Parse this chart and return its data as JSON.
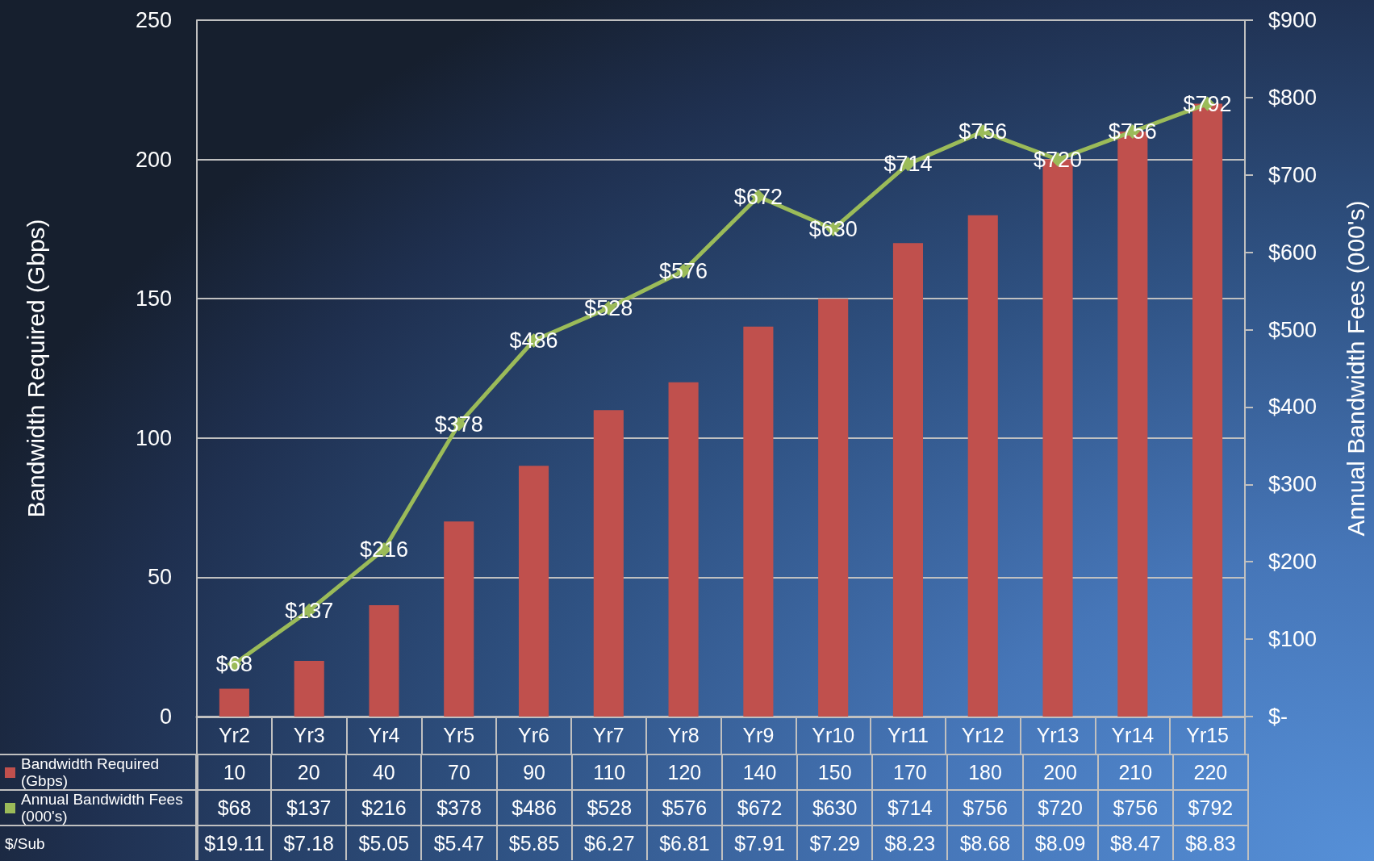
{
  "chart_data": {
    "type": "bar",
    "ylabel": "Bandwidth Required (Gbps)",
    "y2label": "Annual Bandwidth Fees (000's)",
    "categories": [
      "Yr2",
      "Yr3",
      "Yr4",
      "Yr5",
      "Yr6",
      "Yr7",
      "Yr8",
      "Yr9",
      "Yr10",
      "Yr11",
      "Yr12",
      "Yr13",
      "Yr14",
      "Yr15"
    ],
    "series": [
      {
        "name": "Bandwidth Required (Gbps)",
        "color": "#c0504d",
        "values": [
          10,
          20,
          40,
          70,
          90,
          110,
          120,
          140,
          150,
          170,
          180,
          200,
          210,
          220
        ],
        "value_labels": [
          "10",
          "20",
          "40",
          "70",
          "90",
          "110",
          "120",
          "140",
          "150",
          "170",
          "180",
          "200",
          "210",
          "220"
        ]
      },
      {
        "name": "Annual Bandwidth Fees (000's)",
        "type": "line",
        "axis": "y2",
        "color": "#9bbb59",
        "values": [
          68,
          137,
          216,
          378,
          486,
          528,
          576,
          672,
          630,
          714,
          756,
          720,
          756,
          792
        ],
        "value_labels": [
          "$68",
          "$137",
          "$216",
          "$378",
          "$486",
          "$528",
          "$576",
          "$672",
          "$630",
          "$714",
          "$756",
          "$720",
          "$756",
          "$792"
        ]
      }
    ],
    "annotations": [
      "$/Sub",
      "$19.11",
      "$7.18",
      "$5.05",
      "$5.47",
      "$5.85",
      "$6.27",
      "$6.81",
      "$7.91",
      "$7.29",
      "$8.23",
      "$8.68",
      "$8.09",
      "$8.47",
      "$8.83"
    ],
    "ylim": [
      0,
      250
    ],
    "yticks": [
      0,
      50,
      100,
      150,
      200,
      250
    ],
    "y2lim": [
      0,
      900
    ],
    "y2ticks": [
      {
        "value": 0,
        "label": "$-"
      },
      {
        "value": 100,
        "label": "$100"
      },
      {
        "value": 200,
        "label": "$200"
      },
      {
        "value": 300,
        "label": "$300"
      },
      {
        "value": 400,
        "label": "$400"
      },
      {
        "value": 500,
        "label": "$500"
      },
      {
        "value": 600,
        "label": "$600"
      },
      {
        "value": 700,
        "label": "$700"
      },
      {
        "value": 800,
        "label": "$800"
      },
      {
        "value": 900,
        "label": "$900"
      }
    ],
    "grid": "y",
    "legend": "bottom left",
    "marker": "diamond",
    "line_style": "solid"
  }
}
